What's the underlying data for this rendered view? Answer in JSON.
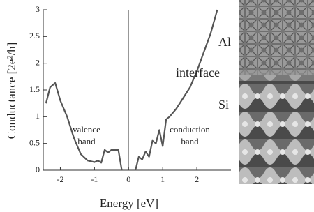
{
  "chart_data": {
    "type": "line",
    "x_label": "Energy [eV]",
    "y_label": "Conductance [2e²/h]",
    "annotations": [
      "valence",
      "band",
      "conduction",
      "band",
      "Al",
      "interface",
      "Si"
    ],
    "x": [
      -2.42,
      -2.3,
      -2.15,
      -2.0,
      -1.8,
      -1.6,
      -1.4,
      -1.2,
      -1.0,
      -0.9,
      -0.8,
      -0.7,
      -0.6,
      -0.5,
      -0.3,
      -0.2,
      0,
      0.2,
      0.3,
      0.4,
      0.5,
      0.6,
      0.7,
      0.8,
      0.9,
      1.0,
      1.1,
      1.2,
      1.4,
      1.6,
      1.8,
      2.0,
      2.2,
      2.4,
      2.6
    ],
    "values": [
      1.25,
      1.55,
      1.63,
      1.3,
      1.0,
      0.6,
      0.3,
      0.18,
      0.15,
      0.18,
      0.14,
      0.38,
      0.33,
      0.38,
      0.38,
      0.0,
      null,
      0.0,
      0.25,
      0.2,
      0.35,
      0.25,
      0.55,
      0.5,
      0.75,
      0.45,
      0.95,
      1.0,
      1.15,
      1.35,
      1.55,
      1.85,
      2.2,
      2.55,
      3.0
    ],
    "color": "#555555",
    "xlim": [
      -2.5,
      3
    ],
    "xticks": [
      -2,
      -1,
      0,
      1,
      2
    ],
    "ylim": [
      0,
      3
    ],
    "yticks": [
      0,
      0.5,
      1,
      1.5,
      2,
      2.5,
      3
    ]
  }
}
